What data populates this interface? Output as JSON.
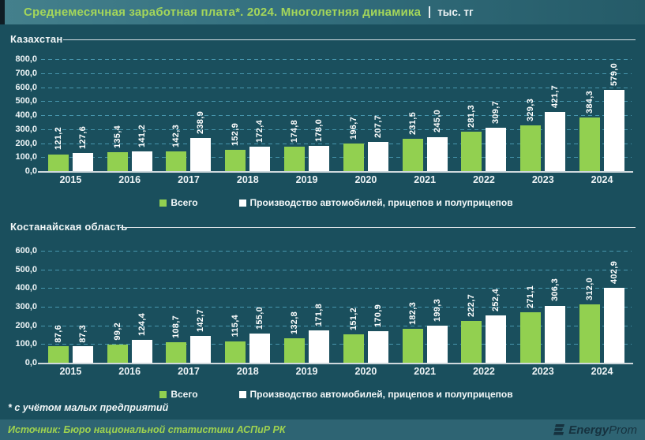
{
  "header": {
    "title": "Среднемесячная заработная плата*. 2024. Многолетняя динамика",
    "unit": "тыс. тг"
  },
  "legend": {
    "total": "Всего",
    "auto": "Производство автомобилей, прицепов и полуприцепов"
  },
  "footnote": "* с учётом малых предприятий",
  "source": "Источник: Бюро национальной статистики АСПиР РК",
  "logo": {
    "name_bold": "Energy",
    "name_light": "Prom"
  },
  "colors": {
    "accent_green": "#92d050",
    "bar_white": "#ffffff",
    "background": "#1a4f5d",
    "grid": "#4796ad",
    "title_green": "#a4d65a",
    "source_band": "#2e6473",
    "logo_navy": "#16323f"
  },
  "chart_data": [
    {
      "type": "bar",
      "title": "Казахстан",
      "categories": [
        "2015",
        "2016",
        "2017",
        "2018",
        "2019",
        "2020",
        "2021",
        "2022",
        "2023",
        "2024"
      ],
      "series": [
        {
          "name": "Всего",
          "color": "#92d050",
          "values": [
            121.2,
            135.4,
            142.3,
            152.9,
            174.8,
            196.7,
            231.5,
            281.3,
            329.3,
            384.3
          ]
        },
        {
          "name": "Производство автомобилей, прицепов и полуприцепов",
          "color": "#ffffff",
          "values": [
            127.6,
            141.2,
            238.9,
            172.4,
            178.0,
            207.7,
            245.0,
            309.7,
            421.7,
            579.0
          ]
        }
      ],
      "ylim": [
        0,
        800
      ],
      "ytick_step": 100,
      "grid": true,
      "legend_position": "bottom",
      "value_label_format": "decimal-comma, rotated 90"
    },
    {
      "type": "bar",
      "title": "Костанайская область",
      "categories": [
        "2015",
        "2016",
        "2017",
        "2018",
        "2019",
        "2020",
        "2021",
        "2022",
        "2023",
        "2024"
      ],
      "series": [
        {
          "name": "Всего",
          "color": "#92d050",
          "values": [
            87.6,
            99.2,
            108.7,
            115.4,
            132.8,
            151.2,
            182.3,
            222.7,
            271.1,
            312.0
          ]
        },
        {
          "name": "Производство автомобилей, прицепов и полуприцепов",
          "color": "#ffffff",
          "values": [
            87.3,
            124.4,
            142.7,
            155.0,
            171.8,
            170.9,
            199.3,
            252.4,
            306.3,
            402.9
          ]
        }
      ],
      "ylim": [
        0,
        600
      ],
      "ytick_step": 100,
      "grid": true,
      "legend_position": "bottom",
      "value_label_format": "decimal-comma, rotated 90"
    }
  ]
}
